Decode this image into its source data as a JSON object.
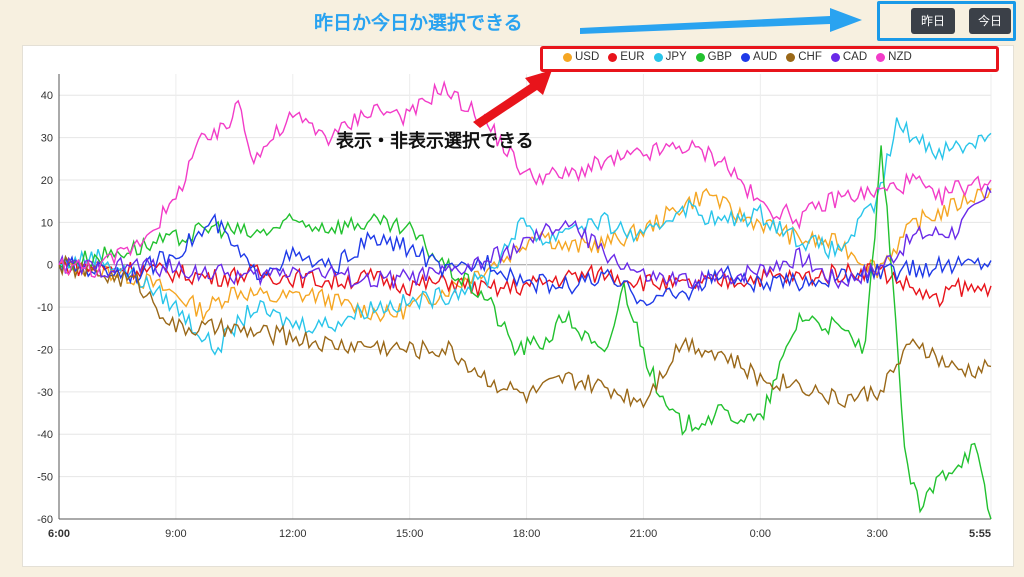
{
  "header": {
    "annotation_top": "昨日か今日か選択できる",
    "annotation_legend": "表示・非表示選択できる",
    "buttons": {
      "yesterday": "昨日",
      "today": "今日"
    }
  },
  "colors": {
    "annotation_blue": "#2aa3f0",
    "annotation_red": "#e8141b"
  },
  "chart_data": {
    "type": "line",
    "x_tick_labels": [
      "6:00",
      "9:00",
      "12:00",
      "15:00",
      "18:00",
      "21:00",
      "0:00",
      "3:00",
      "5:55"
    ],
    "x_ticks": [
      0,
      3,
      6,
      9,
      12,
      15,
      18,
      21,
      23.92
    ],
    "ylim": [
      -60,
      45
    ],
    "y_ticks": [
      40,
      30,
      20,
      10,
      0,
      -10,
      -20,
      -30,
      -40,
      -50,
      -60
    ],
    "grid": true,
    "legend_position": "top-right",
    "series": [
      {
        "name": "USD",
        "color": "#f5a623",
        "points": [
          [
            0,
            0
          ],
          [
            1,
            -1
          ],
          [
            2,
            -3
          ],
          [
            3,
            -7
          ],
          [
            3.7,
            -11
          ],
          [
            4.5,
            -6
          ],
          [
            5.5,
            -8
          ],
          [
            6.5,
            -7
          ],
          [
            7.5,
            -10
          ],
          [
            8.5,
            -12
          ],
          [
            9.5,
            -8
          ],
          [
            10.5,
            -3
          ],
          [
            11.5,
            2
          ],
          [
            12.3,
            8
          ],
          [
            13,
            4
          ],
          [
            14,
            5
          ],
          [
            15,
            8
          ],
          [
            16,
            14
          ],
          [
            16.7,
            17
          ],
          [
            17.3,
            12
          ],
          [
            18,
            10
          ],
          [
            19,
            6
          ],
          [
            20,
            5
          ],
          [
            21,
            -1
          ],
          [
            22,
            10
          ],
          [
            22.8,
            13
          ],
          [
            23.4,
            16
          ],
          [
            23.92,
            18
          ]
        ]
      },
      {
        "name": "EUR",
        "color": "#e8141b",
        "points": [
          [
            0,
            0
          ],
          [
            1,
            -1
          ],
          [
            2,
            -1
          ],
          [
            3,
            -2
          ],
          [
            4,
            -3
          ],
          [
            5,
            -2
          ],
          [
            6,
            -3
          ],
          [
            7,
            -4
          ],
          [
            8,
            -3
          ],
          [
            9,
            -5
          ],
          [
            10,
            -4
          ],
          [
            11,
            -6
          ],
          [
            12,
            -5
          ],
          [
            13,
            -3
          ],
          [
            14,
            -2
          ],
          [
            15,
            -4
          ],
          [
            16,
            -5
          ],
          [
            17,
            -4
          ],
          [
            18,
            -3
          ],
          [
            19,
            -3
          ],
          [
            20,
            -2
          ],
          [
            21,
            -1
          ],
          [
            22,
            -6
          ],
          [
            22.6,
            -9
          ],
          [
            23,
            -5
          ],
          [
            23.5,
            -6
          ],
          [
            23.92,
            -5
          ]
        ]
      },
      {
        "name": "JPY",
        "color": "#29c5ea",
        "points": [
          [
            0,
            0
          ],
          [
            1,
            2
          ],
          [
            2,
            -3
          ],
          [
            3,
            -10
          ],
          [
            4,
            -20
          ],
          [
            5,
            -10
          ],
          [
            6,
            -14
          ],
          [
            7,
            -14
          ],
          [
            8,
            -10
          ],
          [
            9,
            -9
          ],
          [
            10,
            -7
          ],
          [
            11,
            -3
          ],
          [
            11.7,
            8
          ],
          [
            12,
            10
          ],
          [
            12.5,
            5
          ],
          [
            13,
            9
          ],
          [
            14,
            10
          ],
          [
            15,
            6
          ],
          [
            16,
            14
          ],
          [
            17,
            10
          ],
          [
            18,
            12
          ],
          [
            19,
            6
          ],
          [
            20,
            3
          ],
          [
            21,
            15
          ],
          [
            21.5,
            33
          ],
          [
            22.5,
            27
          ],
          [
            23.2,
            28
          ],
          [
            23.92,
            31
          ]
        ]
      },
      {
        "name": "GBP",
        "color": "#22c12f",
        "points": [
          [
            0,
            0
          ],
          [
            1,
            2
          ],
          [
            2,
            4
          ],
          [
            3,
            6
          ],
          [
            4,
            9
          ],
          [
            5,
            7
          ],
          [
            6,
            10
          ],
          [
            7,
            9
          ],
          [
            8,
            10
          ],
          [
            9,
            8
          ],
          [
            10,
            -1
          ],
          [
            11,
            -8
          ],
          [
            11.7,
            -20
          ],
          [
            12.5,
            -18
          ],
          [
            13,
            -12
          ],
          [
            14,
            -22
          ],
          [
            14.5,
            -5
          ],
          [
            15,
            -20
          ],
          [
            15.5,
            -33
          ],
          [
            16,
            -38
          ],
          [
            17,
            -35
          ],
          [
            18,
            -37
          ],
          [
            19,
            -12
          ],
          [
            20,
            -15
          ],
          [
            20.7,
            -20
          ],
          [
            21.1,
            26
          ],
          [
            21.4,
            -2
          ],
          [
            21.7,
            -45
          ],
          [
            22.1,
            -58
          ],
          [
            22.6,
            -50
          ],
          [
            23,
            -47
          ],
          [
            23.5,
            -43
          ],
          [
            23.92,
            -60
          ]
        ]
      },
      {
        "name": "AUD",
        "color": "#1f3ae8",
        "points": [
          [
            0,
            0
          ],
          [
            1,
            -1
          ],
          [
            2,
            -2
          ],
          [
            3,
            3
          ],
          [
            4,
            10
          ],
          [
            5,
            -2
          ],
          [
            6,
            2
          ],
          [
            7,
            -1
          ],
          [
            8,
            6
          ],
          [
            9,
            4
          ],
          [
            10,
            -2
          ],
          [
            11,
            1
          ],
          [
            12,
            -4
          ],
          [
            13,
            -5
          ],
          [
            14,
            -3
          ],
          [
            15,
            -8
          ],
          [
            16,
            -7
          ],
          [
            17,
            -2
          ],
          [
            18,
            -5
          ],
          [
            19,
            -4
          ],
          [
            20,
            -3
          ],
          [
            21,
            -2
          ],
          [
            22,
            -1
          ],
          [
            23,
            0
          ],
          [
            23.92,
            1
          ]
        ]
      },
      {
        "name": "CHF",
        "color": "#9a6818",
        "points": [
          [
            0,
            0
          ],
          [
            1,
            -2
          ],
          [
            2,
            -4
          ],
          [
            3,
            -15
          ],
          [
            4,
            -15
          ],
          [
            5,
            -16
          ],
          [
            6,
            -17
          ],
          [
            7,
            -19
          ],
          [
            8,
            -19
          ],
          [
            9,
            -20
          ],
          [
            10,
            -20
          ],
          [
            11,
            -27
          ],
          [
            12,
            -31
          ],
          [
            13,
            -27
          ],
          [
            14,
            -29
          ],
          [
            15,
            -32
          ],
          [
            16,
            -18
          ],
          [
            17,
            -21
          ],
          [
            18,
            -27
          ],
          [
            19,
            -28
          ],
          [
            20,
            -32
          ],
          [
            21,
            -30
          ],
          [
            22,
            -18
          ],
          [
            22.5,
            -22
          ],
          [
            23,
            -25
          ],
          [
            23.6,
            -25
          ],
          [
            23.92,
            -24
          ]
        ]
      },
      {
        "name": "CAD",
        "color": "#6a2ae8",
        "points": [
          [
            0,
            0
          ],
          [
            1,
            -1
          ],
          [
            2,
            0
          ],
          [
            3,
            -1
          ],
          [
            4,
            -2
          ],
          [
            5,
            -3
          ],
          [
            6,
            -1
          ],
          [
            7,
            -2
          ],
          [
            8,
            -4
          ],
          [
            9,
            -3
          ],
          [
            10,
            -2
          ],
          [
            11,
            1
          ],
          [
            12,
            5
          ],
          [
            13,
            10
          ],
          [
            14,
            3
          ],
          [
            15,
            -3
          ],
          [
            16,
            -4
          ],
          [
            17,
            -3
          ],
          [
            18,
            -1
          ],
          [
            19,
            2
          ],
          [
            20,
            -4
          ],
          [
            21,
            -1
          ],
          [
            22,
            7
          ],
          [
            23,
            8
          ],
          [
            23.92,
            17
          ]
        ]
      },
      {
        "name": "NZD",
        "color": "#f23cc8",
        "points": [
          [
            0,
            0
          ],
          [
            1,
            -1
          ],
          [
            2,
            5
          ],
          [
            3,
            15
          ],
          [
            3.5,
            28
          ],
          [
            4.3,
            32
          ],
          [
            4.6,
            39
          ],
          [
            5,
            25
          ],
          [
            6,
            35
          ],
          [
            7,
            30
          ],
          [
            8,
            37
          ],
          [
            9,
            35
          ],
          [
            9.8,
            42
          ],
          [
            10.5,
            37
          ],
          [
            11,
            33
          ],
          [
            12,
            21
          ],
          [
            13,
            21
          ],
          [
            14,
            24
          ],
          [
            15,
            26
          ],
          [
            16,
            28
          ],
          [
            17,
            25
          ],
          [
            18,
            14
          ],
          [
            19,
            11
          ],
          [
            20,
            16
          ],
          [
            21,
            17
          ],
          [
            22,
            20
          ],
          [
            22.5,
            15
          ],
          [
            23,
            18
          ],
          [
            23.92,
            20
          ]
        ]
      }
    ]
  }
}
